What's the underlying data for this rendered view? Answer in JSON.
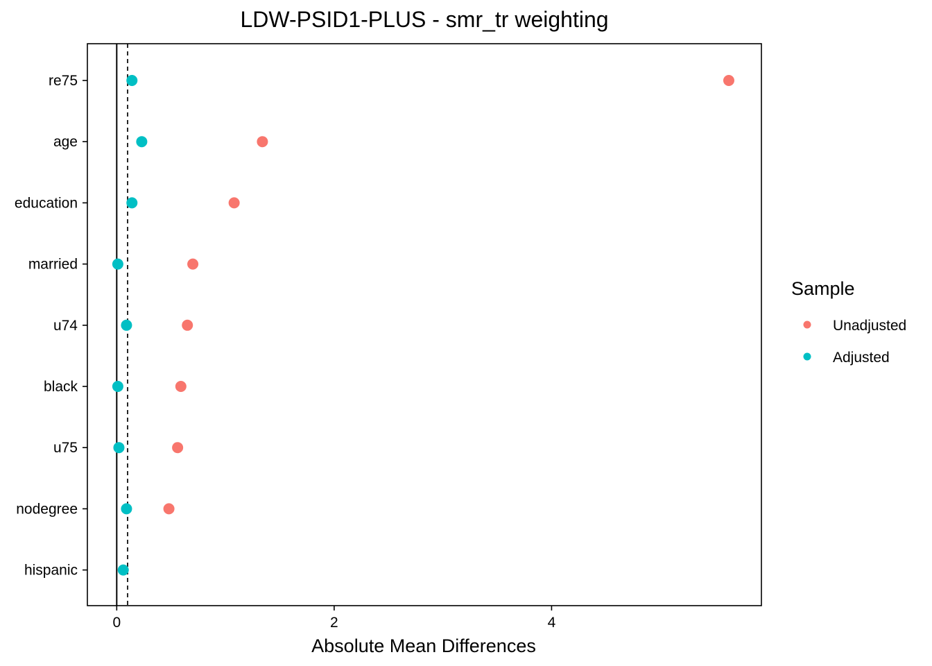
{
  "chart_data": {
    "type": "scatter",
    "title": "LDW-PSID1-PLUS - smr_tr weighting",
    "xlabel": "Absolute Mean Differences",
    "ylabel": "",
    "xlim": [
      -0.27,
      5.93
    ],
    "x_ticks": [
      0,
      2,
      4
    ],
    "x_tick_labels": [
      "0",
      "2",
      "4"
    ],
    "categories": [
      "re75",
      "age",
      "education",
      "married",
      "u74",
      "black",
      "u75",
      "nodegree",
      "hispanic"
    ],
    "reference_lines": [
      {
        "x": 0,
        "style": "solid"
      },
      {
        "x": 0.1,
        "style": "dashed"
      }
    ],
    "grid": false,
    "legend": {
      "title": "Sample",
      "position": "right"
    },
    "series": [
      {
        "name": "Unadjusted",
        "color": "#F8766D",
        "values": [
          5.63,
          1.34,
          1.08,
          0.7,
          0.65,
          0.59,
          0.56,
          0.48,
          null
        ]
      },
      {
        "name": "Adjusted",
        "color": "#00BFC4",
        "values": [
          0.14,
          0.23,
          0.14,
          0.01,
          0.09,
          0.01,
          0.02,
          0.09,
          0.06
        ]
      }
    ]
  }
}
